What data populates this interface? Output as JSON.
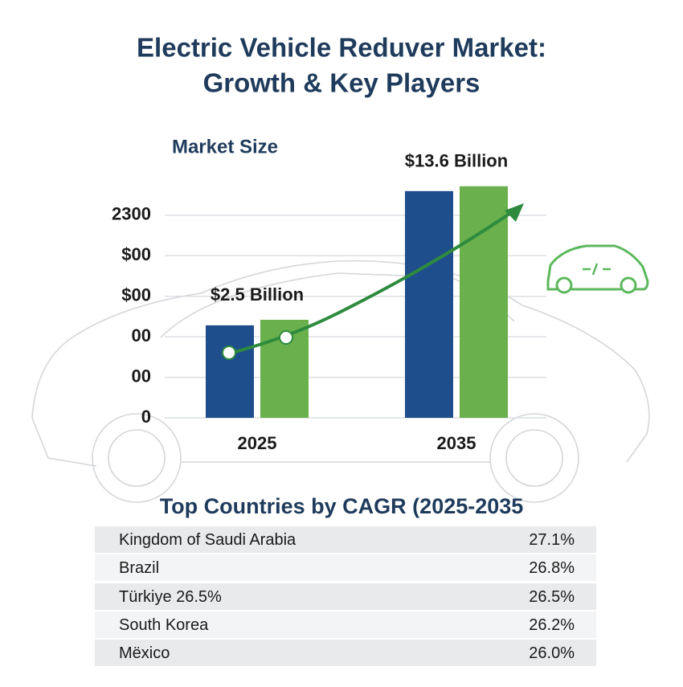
{
  "title": "Electric Vehicle Reduver Market:",
  "subtitle": "Growth & Key Players",
  "chart_data": {
    "type": "bar",
    "title": "Market Size",
    "categories": [
      "2025",
      "2035"
    ],
    "series": [
      {
        "color": "#1f4e8c",
        "values": [
          1050,
          2574
        ]
      },
      {
        "color": "#6ab04c",
        "values": [
          1113,
          2629
        ]
      }
    ],
    "annotations": [
      "$2.5 Billion",
      "$13.6 Billion"
    ],
    "ylim": [
      0,
      2700
    ],
    "yticks": [
      0,
      {
        "value": 460,
        "label": "00"
      },
      {
        "value": 920,
        "label": "00"
      },
      {
        "value": 1380,
        "label": "$00"
      },
      {
        "value": 1840,
        "label": "$00"
      },
      2300
    ],
    "grid": true
  },
  "table": {
    "title": "Top Countries by CAGR (2025-2035",
    "rows": [
      [
        "Kingdom of Saudi Arabia",
        "27.1%"
      ],
      [
        "Brazil",
        "26.8%"
      ],
      [
        "Türkiye 26.5%",
        "26.5%"
      ],
      [
        "South Korea",
        "26.2%"
      ],
      [
        "Mëxico",
        "26.0%"
      ]
    ]
  }
}
